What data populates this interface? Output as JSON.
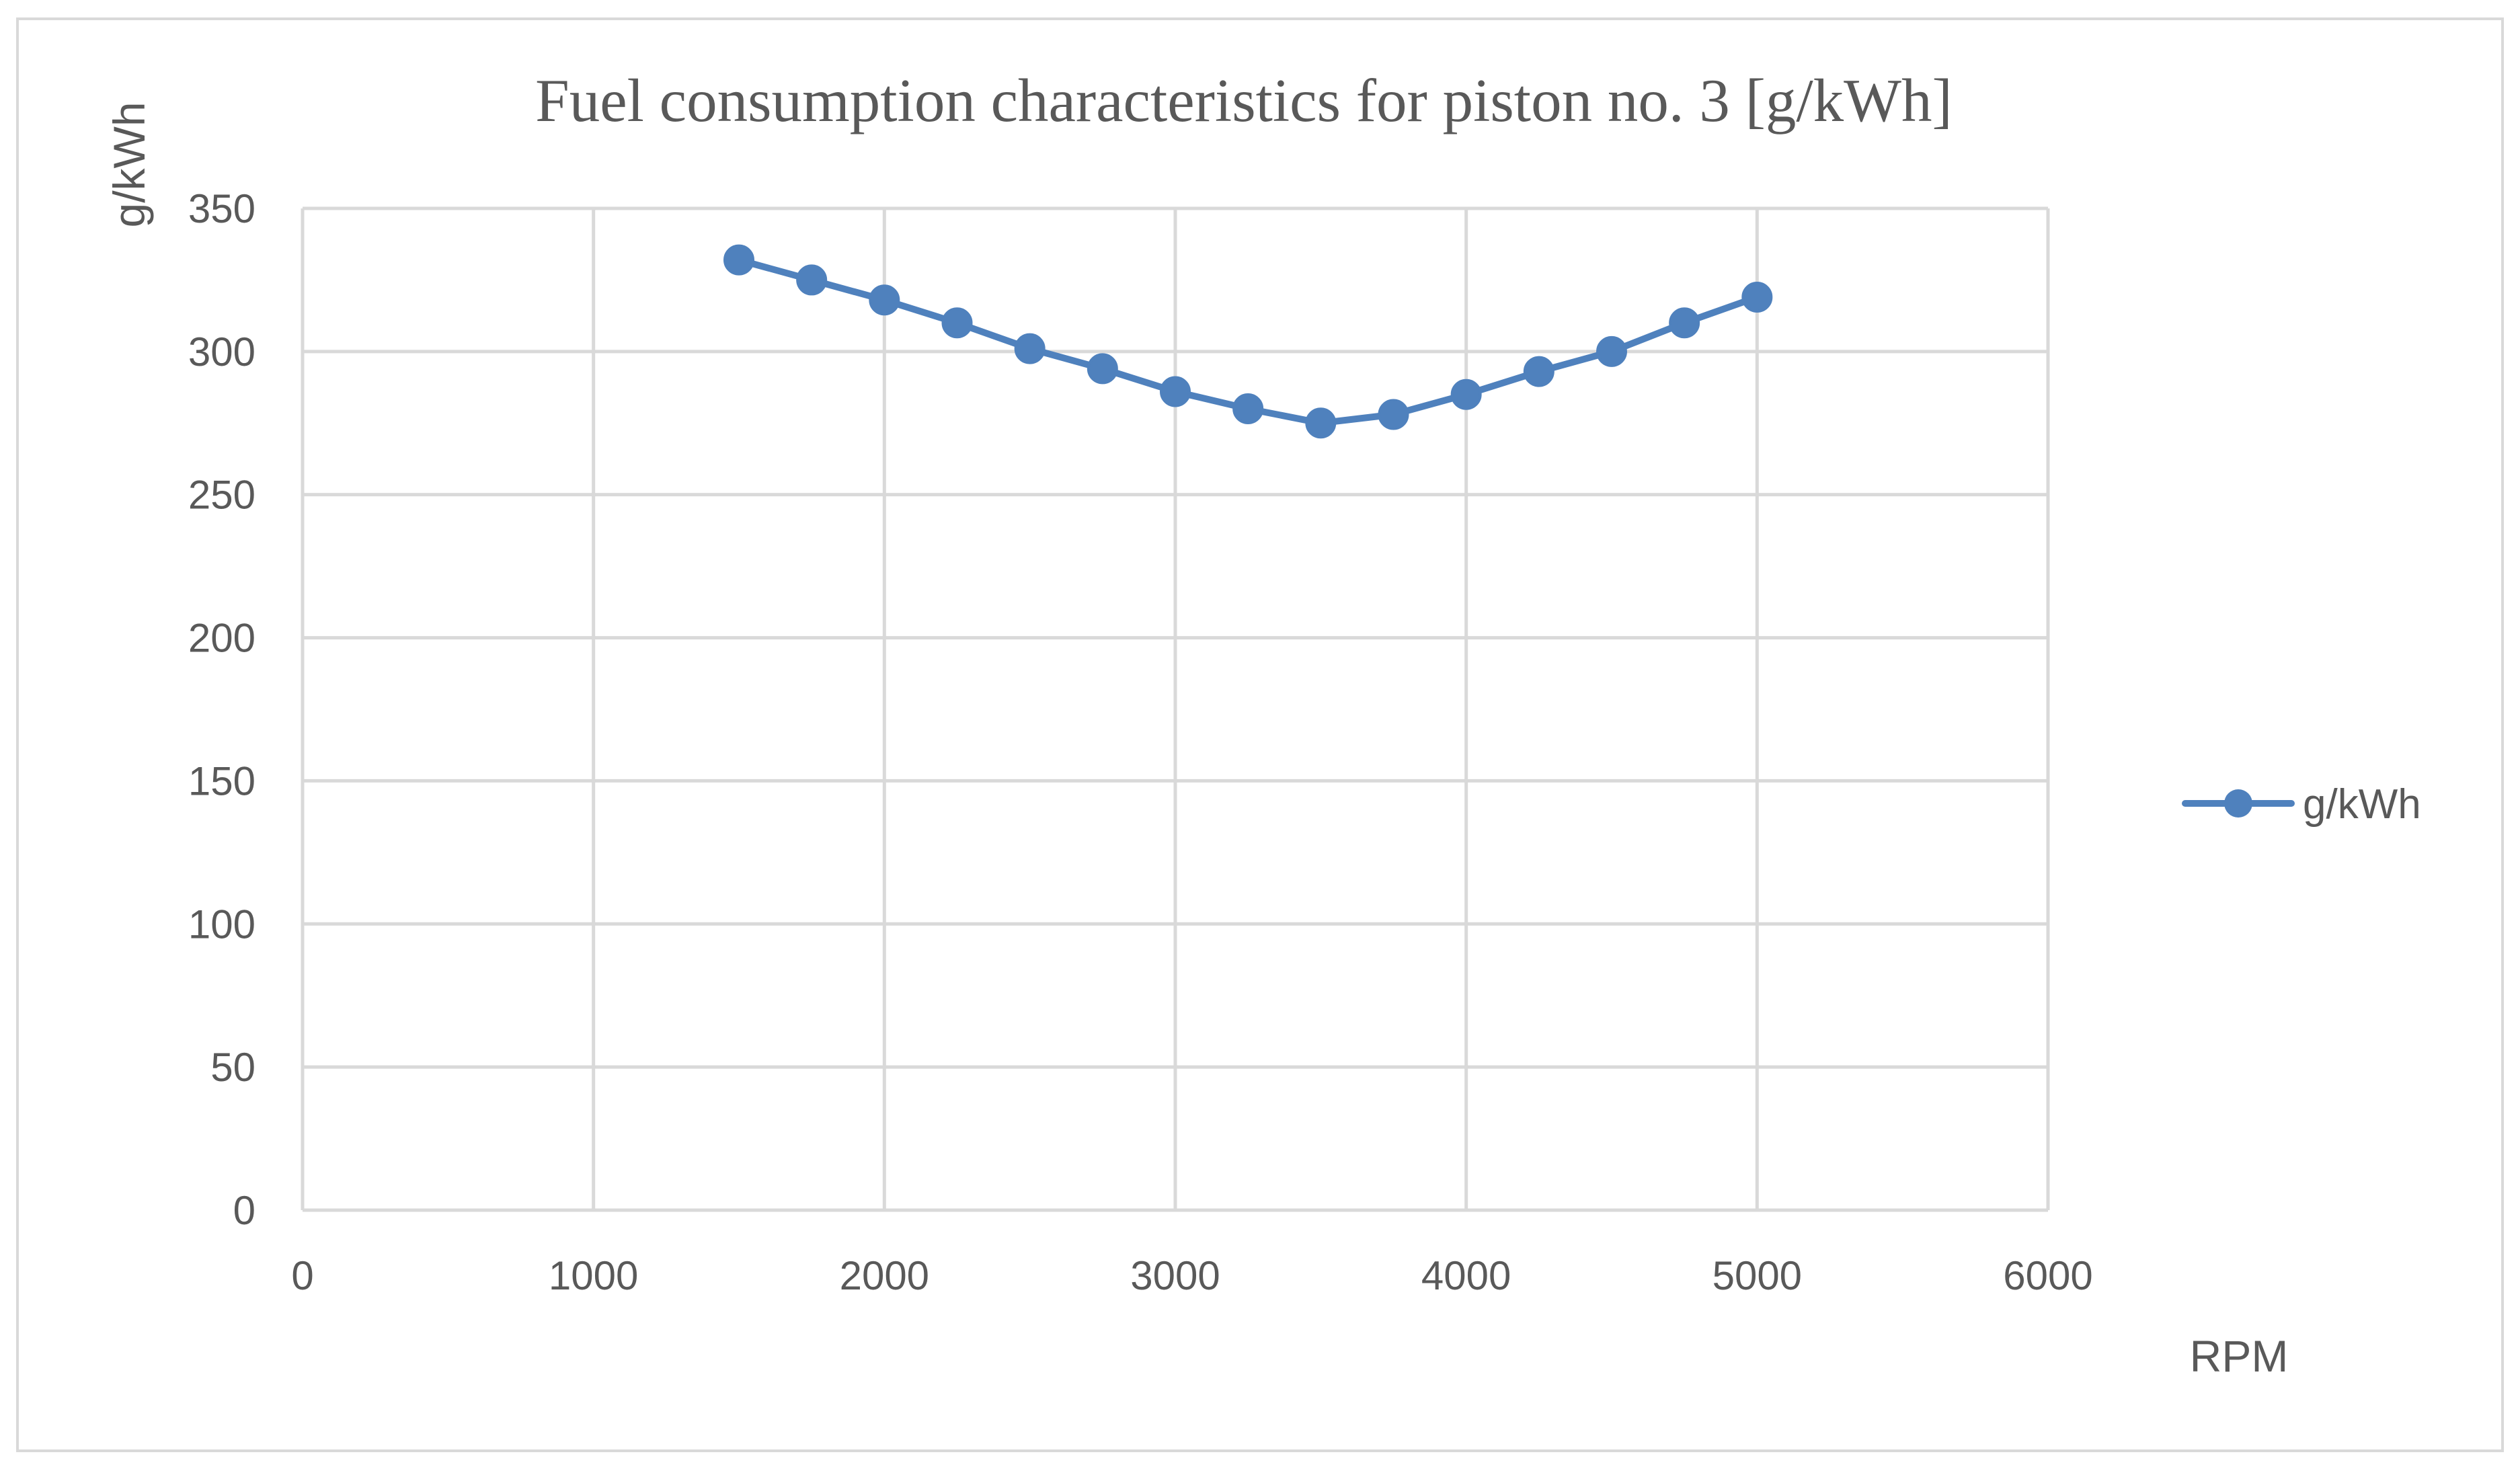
{
  "chart_data": {
    "type": "scatter",
    "title": "Fuel consumption characteristics for piston no. 3 [g/kWh]",
    "xlabel": "RPM",
    "ylabel": "g/kWh",
    "xlim": [
      0,
      6000
    ],
    "ylim": [
      0,
      350
    ],
    "xticks": [
      0,
      1000,
      2000,
      3000,
      4000,
      5000,
      6000
    ],
    "yticks": [
      0,
      50,
      100,
      150,
      200,
      250,
      300,
      350
    ],
    "grid": true,
    "legend_position": "right",
    "series": [
      {
        "name": "g/kWh",
        "color": "#4f81bd",
        "x": [
          1500,
          1750,
          2000,
          2250,
          2500,
          2750,
          3000,
          3250,
          3500,
          3750,
          4000,
          4250,
          4500,
          4750,
          5000
        ],
        "y": [
          332,
          325,
          318,
          310,
          301,
          294,
          286,
          280,
          275,
          278,
          285,
          293,
          300,
          310,
          319
        ]
      }
    ]
  }
}
